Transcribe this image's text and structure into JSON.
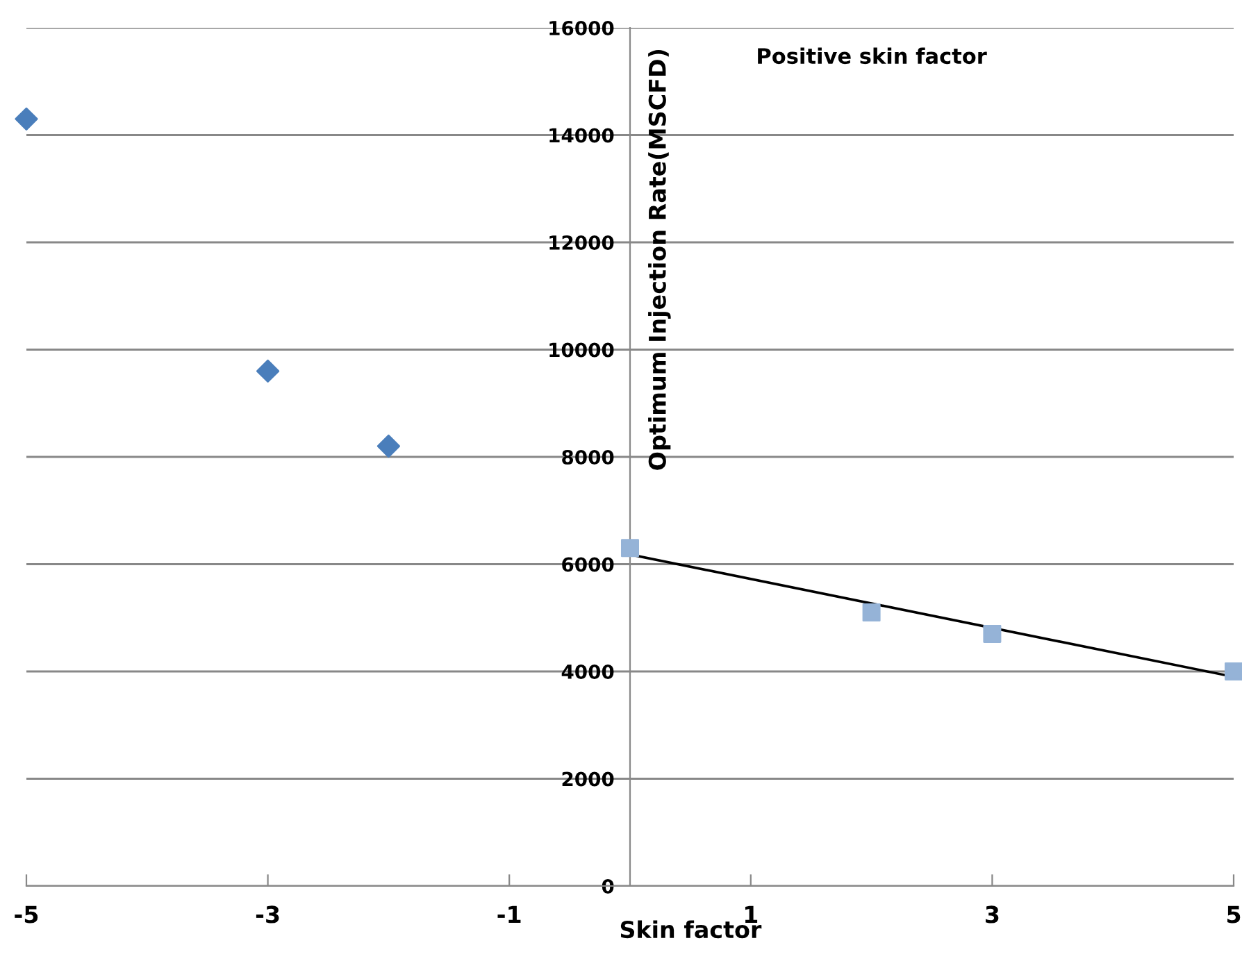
{
  "chart_data": {
    "type": "scatter",
    "xlabel": "Skin factor",
    "ylabel": "Optimum Injection Rate(MSCFD)",
    "annotations": [
      "Positive skin factor"
    ],
    "xlim": [
      -5,
      5
    ],
    "xticks": [
      -5,
      -3,
      -1,
      1,
      3,
      5
    ],
    "ylim": [
      0,
      16000
    ],
    "yticks": [
      0,
      2000,
      4000,
      6000,
      8000,
      10000,
      12000,
      14000,
      16000
    ],
    "grid": "y",
    "legend": false,
    "series": [
      {
        "color": "#4a7ebb",
        "marker": "diamond",
        "x": [
          -5,
          -3,
          -2
        ],
        "values": [
          14300,
          9600,
          8200
        ]
      },
      {
        "color": "#95b3d7",
        "marker": "square",
        "x": [
          0,
          2,
          3,
          5
        ],
        "values": [
          6300,
          5100,
          4700,
          4000
        ]
      },
      {
        "type": "line",
        "color": "#000000",
        "marker": "none",
        "line_style": "solid",
        "x": [
          0,
          5
        ],
        "values": [
          6180,
          3900
        ]
      }
    ]
  }
}
